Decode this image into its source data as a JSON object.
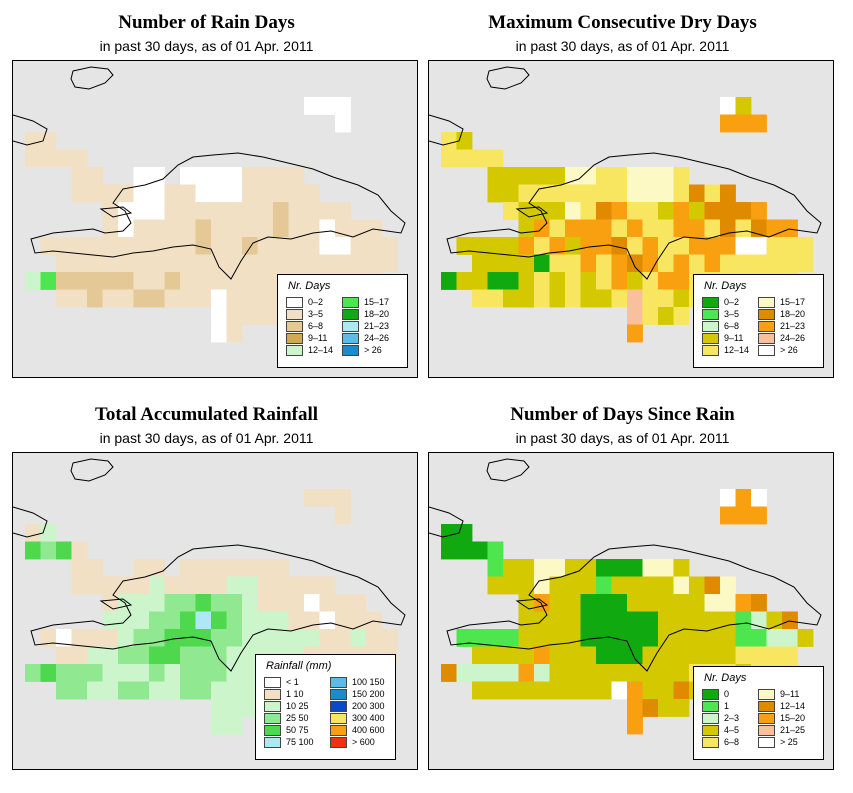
{
  "subtitle": "in past 30 days, as of  01 Apr. 2011",
  "colors": {
    "background": "#e5e5e5",
    "land_base": "#ffffff"
  },
  "panels": [
    {
      "title": "Number of Rain Days",
      "legend_title": "Nr. Days",
      "legend": [
        {
          "label": "0–2",
          "color": "#ffffff"
        },
        {
          "label": "3–5",
          "color": "#f2e0c4"
        },
        {
          "label": "6–8",
          "color": "#e4c896"
        },
        {
          "label": "9–11",
          "color": "#cfaa4e"
        },
        {
          "label": "12–14",
          "color": "#ccf5cc"
        },
        {
          "label": "15–17",
          "color": "#4ee64e"
        },
        {
          "label": "18–20",
          "color": "#10aa10"
        },
        {
          "label": "21–23",
          "color": "#aee8f4"
        },
        {
          "label": "24–26",
          "color": "#5abce8"
        },
        {
          "label": "> 26",
          "color": "#1a8ccc"
        }
      ],
      "grid": [
        "..................WWW....",
        "....................W....",
        "BB.......................",
        "BBBB.....................",
        "...BB..WW.WWWWBBBB.......",
        "...BBBBWWBBWWWBBBBB......",
        ".....BWWWBBBBBBBGBBBB....",
        ".....BWBBBBCBBBBGBBWBBB..",
        ".BBBBBBBBBBCBBCBBBBWWBBB.",
        "..BBBBBBBBBBBBBBBBBBBBBB.",
        "EFCCCCCBBCBBBBBBBBBBBBB..",
        "..BBCBBCCBBBWBBBB........",
        "............WBBBB........",
        "............WB..........."
      ]
    },
    {
      "title": "Maximum Consecutive Dry Days",
      "legend_title": "Nr. Days",
      "legend": [
        {
          "label": "0–2",
          "color": "#10aa10"
        },
        {
          "label": "3–5",
          "color": "#4ee64e"
        },
        {
          "label": "6–8",
          "color": "#ccf5cc"
        },
        {
          "label": "9–11",
          "color": "#d4c800"
        },
        {
          "label": "12–14",
          "color": "#f8e660"
        },
        {
          "label": "15–17",
          "color": "#fdf9c4"
        },
        {
          "label": "18–20",
          "color": "#e08a00"
        },
        {
          "label": "21–23",
          "color": "#f8a010"
        },
        {
          "label": "24–26",
          "color": "#f8c09c"
        },
        {
          "label": "> 26",
          "color": "#ffffff"
        }
      ],
      "grid": [
        "..................JD.....",
        "..................HHH....",
        "ED.......................",
        "EEEE.....................",
        "...DDDDDFFEEFFFE.........",
        "...DDEEEEEEEFFFEGEG......",
        "....EDDDFEGHEEDHDGGGH....",
        ".....DHEHHHEHEEHHEGEGHH..",
        ".DDDDHEHDHHGEHEEHHHJJEEE.",
        "..DDDDCEEHEHGHEHEHEEEEEE.",
        "CDDCCDEDEDEHDEHHEEEEEEE..",
        "..EEDDEDEDDEIEEDE........",
        "............IEDE.........",
        "............H............"
      ]
    },
    {
      "title": "Total Accumulated Rainfall",
      "legend_title": "Rainfall (mm)",
      "legend": [
        {
          "label": "< 1",
          "color": "#ffffff"
        },
        {
          "label": "1     10",
          "color": "#f2e0c4"
        },
        {
          "label": "10    25",
          "color": "#ccf5cc"
        },
        {
          "label": "25    50",
          "color": "#90e890"
        },
        {
          "label": "50    75",
          "color": "#4ed84e"
        },
        {
          "label": "75   100",
          "color": "#aee8f4"
        },
        {
          "label": "100  150",
          "color": "#5abce8"
        },
        {
          "label": "150  200",
          "color": "#1a8ccc"
        },
        {
          "label": "200  300",
          "color": "#0a4ac8"
        },
        {
          "label": "300  400",
          "color": "#f8e660"
        },
        {
          "label": "400  600",
          "color": "#f8a010"
        },
        {
          "label": "> 600",
          "color": "#f03010"
        }
      ],
      "grid": [
        "..................BBB....",
        "....................B....",
        "BC.......................",
        "EDEB.....................",
        "...BB..BB.BBBBBBB........",
        "...BBBBBCBBBBCCBBBBB.....",
        ".....BCCCDDEDDCBBBWBBB...",
        ".....CCCDDEFEDCCCBBWBBB..",
        ".BWBBBCDDEEEDDCCCCCBBCBB.",
        "..BBCCDDEEDDDCCCCCBBBBBB.",
        "DEDDDCCCDCDDDCCCCCCCBBB..",
        "..DDCCDDCCDDCCCBB........",
        "............CCCC.........",
        "............CC..........."
      ]
    },
    {
      "title": "Number of Days Since Rain",
      "legend_title": "Nr. Days",
      "legend": [
        {
          "label": "0",
          "color": "#10aa10"
        },
        {
          "label": "1",
          "color": "#4ee64e"
        },
        {
          "label": "2–3",
          "color": "#ccf5cc"
        },
        {
          "label": "4–5",
          "color": "#d4c800"
        },
        {
          "label": "6–8",
          "color": "#f8e660"
        },
        {
          "label": "9–11",
          "color": "#fdf9c4"
        },
        {
          "label": "12–14",
          "color": "#e08a00"
        },
        {
          "label": "15–20",
          "color": "#f8a010"
        },
        {
          "label": "21–25",
          "color": "#f8c09c"
        },
        {
          "label": "> 25",
          "color": "#ffffff"
        }
      ],
      "grid": [
        "..................JHJ....",
        "..................HHH....",
        "AA.......................",
        "AAAB.....................",
        "...BDDFFDDAAAFFD.........",
        "...DDDFDDDBDDDDFDGF......",
        ".....DHDDAAADDDDDFFHG....",
        ".....DDDDAAAAADDDDDBCDG..",
        ".BBBBDDDDAAAAADDDDDBBCCD.",
        "..DDDDHDDDAAADDDDDDEEEE..",
        "GCCCCHCDDDDDDDDDEEEDEEE..",
        "..DDDDDDDDDJHDDGD........",
        "............HGDD.........",
        "............H............"
      ]
    }
  ],
  "color_keys": {
    "rain_days": {
      "B": "#f2e0c4",
      "C": "#e4c896",
      "D": "#cfaa4e",
      "E": "#ccf5cc",
      "F": "#4ee64e",
      "G": "#e4c896",
      "W": "#ffffff"
    },
    "dry_days": {
      "C": "#10aa10",
      "D": "#d4c800",
      "E": "#f8e660",
      "F": "#fdf9c4",
      "G": "#e08a00",
      "H": "#f8a010",
      "I": "#f8c09c",
      "J": "#ffffff"
    },
    "rainfall": {
      "B": "#f2e0c4",
      "C": "#ccf5cc",
      "D": "#90e890",
      "E": "#4ed84e",
      "F": "#aee8f4",
      "W": "#ffffff"
    },
    "since_rain": {
      "A": "#10aa10",
      "B": "#4ee64e",
      "C": "#ccf5cc",
      "D": "#d4c800",
      "E": "#f8e660",
      "F": "#fdf9c4",
      "G": "#e08a00",
      "H": "#f8a010",
      "J": "#ffffff"
    }
  }
}
